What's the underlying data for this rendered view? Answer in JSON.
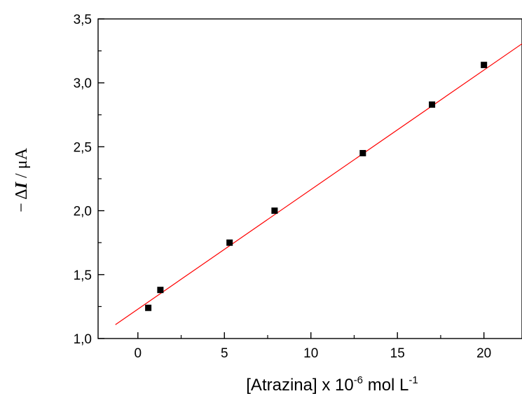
{
  "chart_data": {
    "type": "scatter",
    "title": "",
    "xlabel": {
      "prefix": "[Atrazina] x 10",
      "exp1": "-6",
      "middle": " mol L",
      "exp2": "-1"
    },
    "ylabel": {
      "sign": "− ",
      "delta": "Δ",
      "var": "I",
      "unit": " / μA"
    },
    "xlim": [
      -2.3,
      22.2
    ],
    "ylim": [
      1.0,
      3.5
    ],
    "x_ticks": [
      0,
      5,
      10,
      15,
      20
    ],
    "x_tick_labels": [
      "0",
      "5",
      "10",
      "15",
      "20"
    ],
    "x_minor_ticks": [
      2.5,
      7.5,
      12.5,
      17.5
    ],
    "y_ticks": [
      1.0,
      1.5,
      2.0,
      2.5,
      3.0,
      3.5
    ],
    "y_tick_labels": [
      "1,0",
      "1,5",
      "2,0",
      "2,5",
      "3,0",
      "3,5"
    ],
    "y_minor_ticks": [
      1.25,
      1.75,
      2.25,
      2.75,
      3.25
    ],
    "series": [
      {
        "marker": "square",
        "color": "#000000",
        "points": [
          {
            "x": 0.6,
            "y": 1.24
          },
          {
            "x": 1.3,
            "y": 1.38
          },
          {
            "x": 5.3,
            "y": 1.75
          },
          {
            "x": 7.9,
            "y": 2.0
          },
          {
            "x": 13.0,
            "y": 2.45
          },
          {
            "x": 17.0,
            "y": 2.83
          },
          {
            "x": 20.0,
            "y": 3.14
          }
        ]
      }
    ],
    "fit_line": {
      "color": "#ff0000",
      "x_start": -1.3,
      "x_end": 22.2,
      "slope": 0.0935,
      "intercept": 1.23
    },
    "grid": false,
    "legend": "none"
  }
}
